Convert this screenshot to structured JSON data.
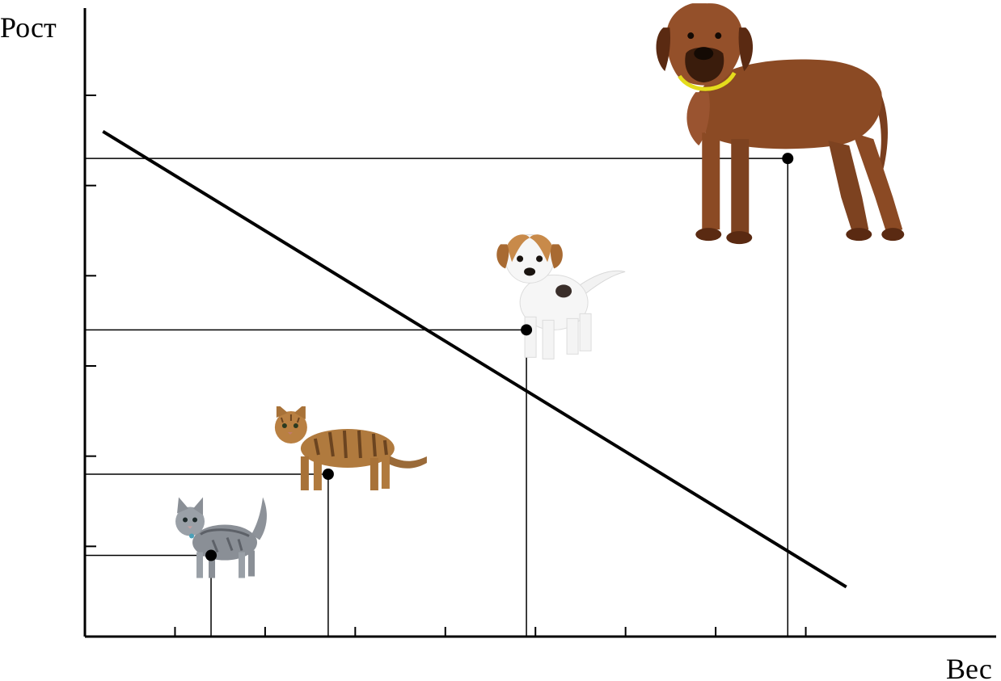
{
  "chart_data": {
    "type": "scatter",
    "ylabel": "Рост",
    "xlabel": "Вес",
    "xlim": [
      0,
      9
    ],
    "ylim": [
      0,
      6
    ],
    "x_ticks": [
      1,
      2,
      3,
      4,
      5,
      6,
      7,
      8
    ],
    "y_ticks": [
      1,
      2,
      3,
      4,
      5,
      6
    ],
    "grid": false,
    "points": [
      {
        "x": 1.4,
        "y": 0.9,
        "icon": "grey-kitten-icon",
        "color": "#8a8f96"
      },
      {
        "x": 2.7,
        "y": 1.8,
        "icon": "tabby-cat-icon",
        "color": "#b07a3e"
      },
      {
        "x": 4.9,
        "y": 3.4,
        "icon": "puppy-icon",
        "color": "#c88a4a"
      },
      {
        "x": 7.8,
        "y": 5.3,
        "icon": "big-dog-icon",
        "color": "#8b4a24"
      }
    ],
    "trend_line": [
      {
        "x": 0.2,
        "y": 5.6
      },
      {
        "x": 8.45,
        "y": 0.55
      }
    ]
  }
}
